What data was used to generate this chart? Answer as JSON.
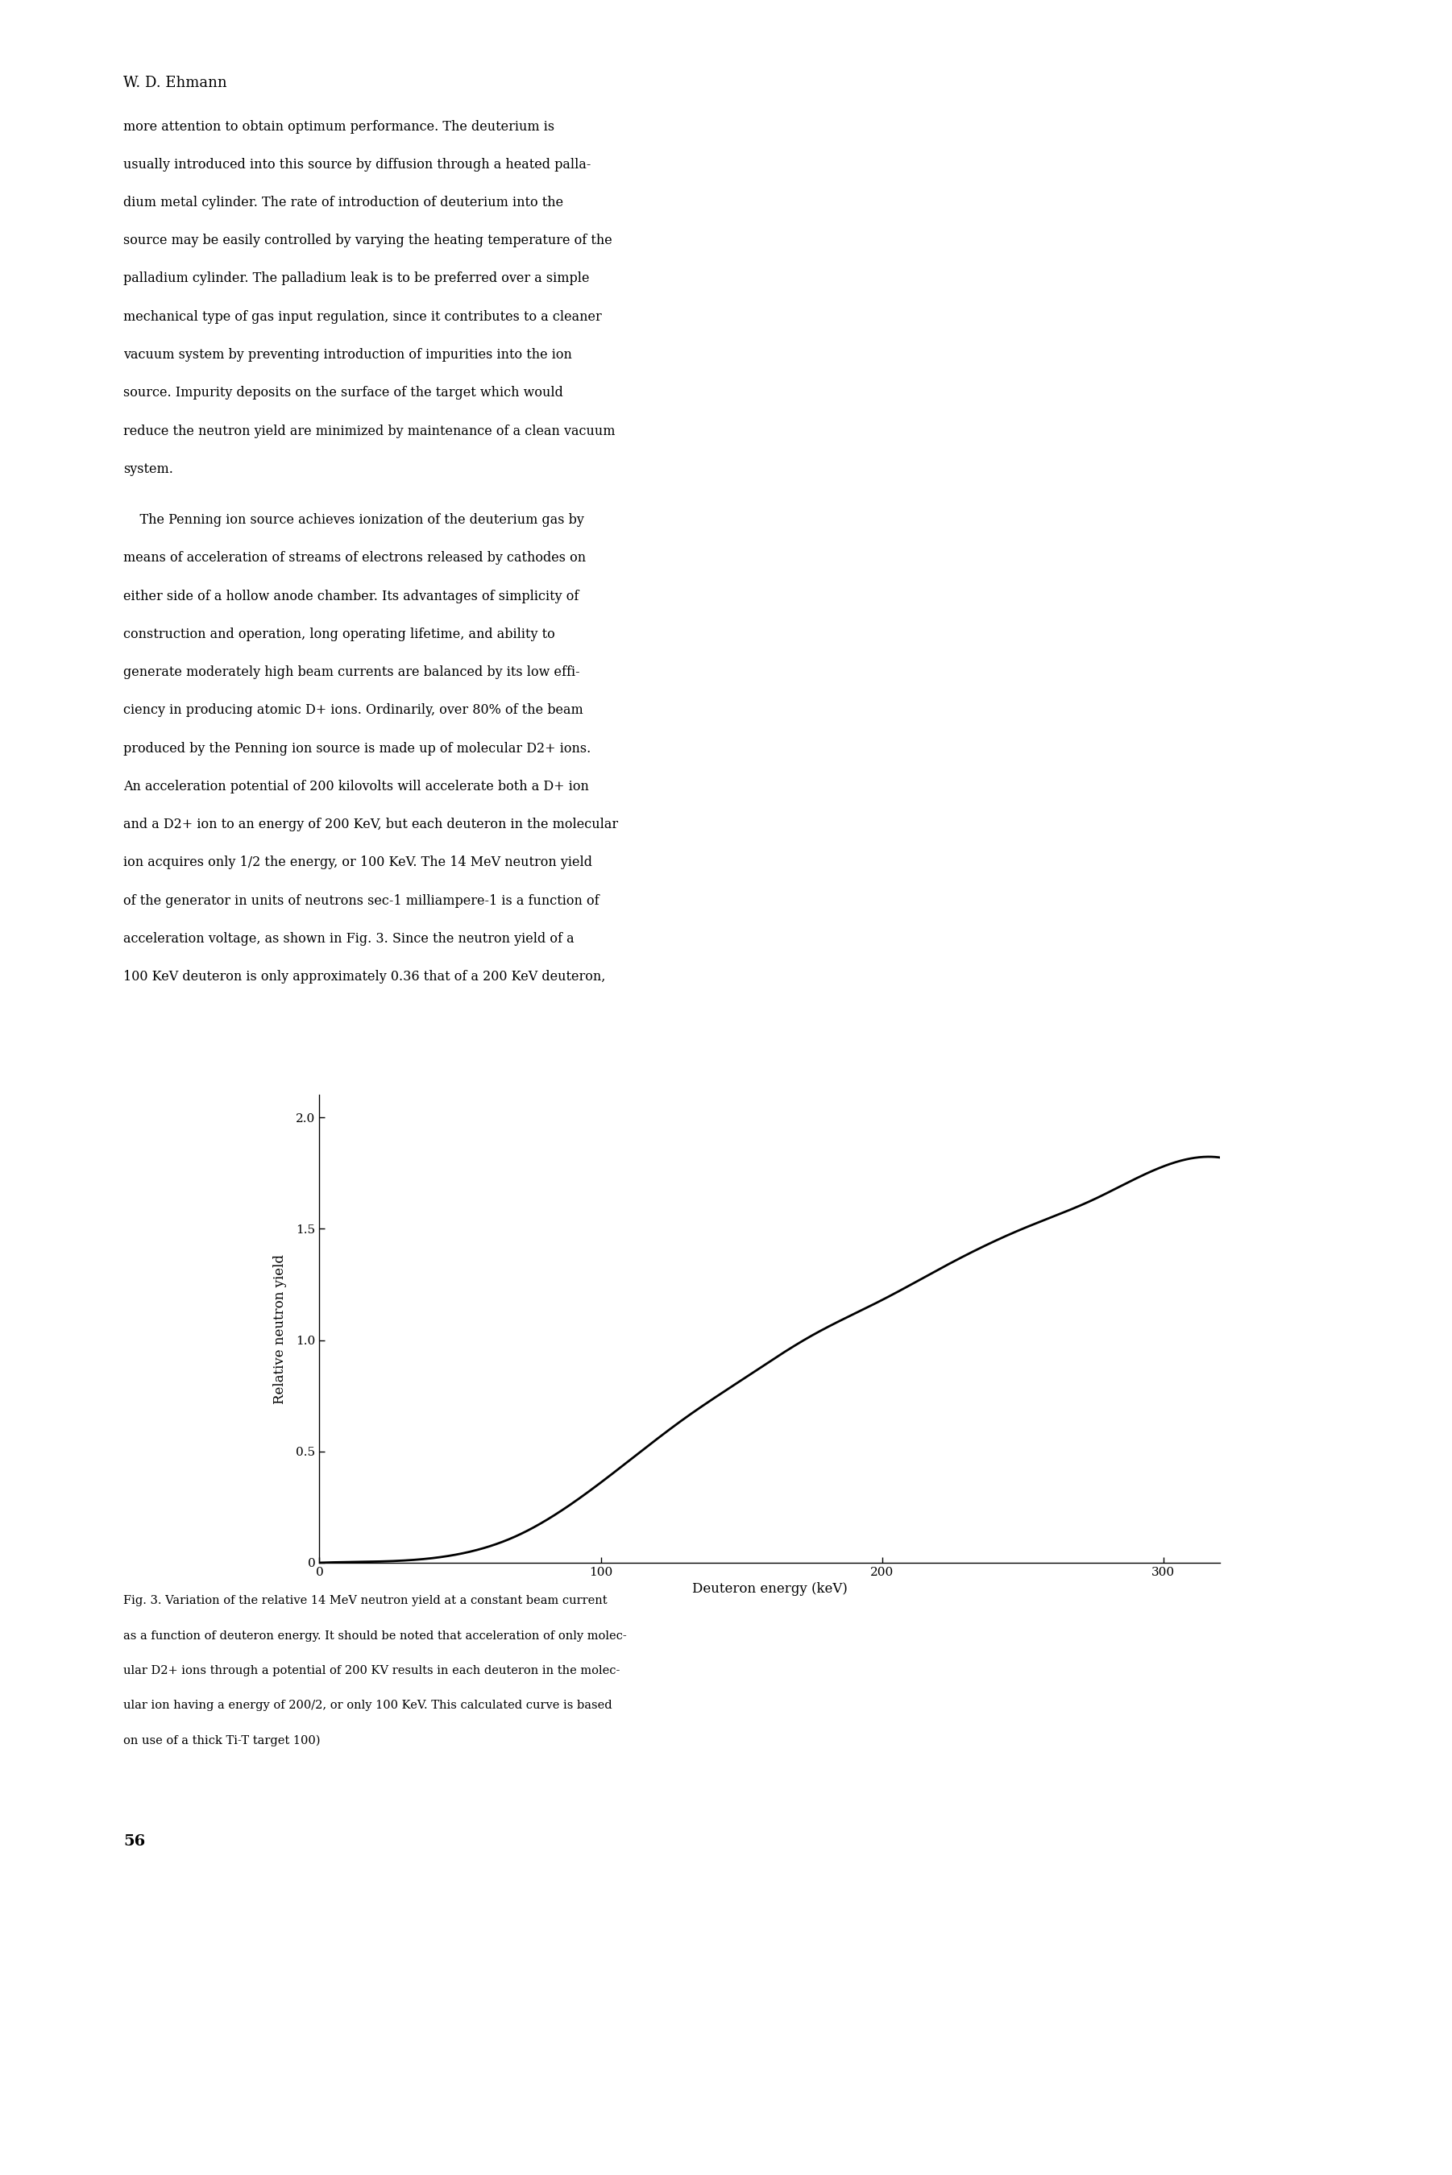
{
  "page_background": "#ffffff",
  "text_color": "#000000",
  "header_text": "W. D. Ehmann",
  "body_text_lines": [
    "more attention to obtain optimum performance. The deuterium is",
    "usually introduced into this source by diffusion through a heated palla-",
    "dium metal cylinder. The rate of introduction of deuterium into the",
    "source may be easily controlled by varying the heating temperature of the",
    "palladium cylinder. The palladium leak is to be preferred over a simple",
    "mechanical type of gas input regulation, since it contributes to a cleaner",
    "vacuum system by preventing introduction of impurities into the ion",
    "source. Impurity deposits on the surface of the target which would",
    "reduce the neutron yield are minimized by maintenance of a clean vacuum",
    "system."
  ],
  "body_text2_lines": [
    "    The Penning ion source achieves ionization of the deuterium gas by",
    "means of acceleration of streams of electrons released by cathodes on",
    "either side of a hollow anode chamber. Its advantages of simplicity of",
    "construction and operation, long operating lifetime, and ability to",
    "generate moderately high beam currents are balanced by its low effi-",
    "ciency in producing atomic D+ ions. Ordinarily, over 80% of the beam",
    "produced by the Penning ion source is made up of molecular D2+ ions.",
    "An acceleration potential of 200 kilovolts will accelerate both a D+ ion",
    "and a D2+ ion to an energy of 200 KeV, but each deuteron in the molecular",
    "ion acquires only 1/2 the energy, or 100 KeV. The 14 MeV neutron yield",
    "of the generator in units of neutrons sec-1 milliampere-1 is a function of",
    "acceleration voltage, as shown in Fig. 3. Since the neutron yield of a",
    "100 KeV deuteron is only approximately 0.36 that of a 200 KeV deuteron,"
  ],
  "xlabel": "Deuteron energy (keV)",
  "ylabel": "Relative neutron yield",
  "xlim": [
    0,
    320
  ],
  "ylim": [
    0,
    2.1
  ],
  "xticks": [
    0,
    100,
    200,
    300
  ],
  "yticks": [
    0.0,
    0.5,
    1.0,
    1.5,
    2.0
  ],
  "curve_color": "#000000",
  "curve_linewidth": 2.0,
  "caption_lines": [
    "Fig. 3. Variation of the relative 14 MeV neutron yield at a constant beam current",
    "as a function of deuteron energy. It should be noted that acceleration of only molec-",
    "ular D2+ ions through a potential of 200 KV results in each deuteron in the molec-",
    "ular ion having a energy of 200/2, or only 100 KeV. This calculated curve is based",
    "on use of a thick Ti-T target 100)"
  ],
  "page_number": "56"
}
